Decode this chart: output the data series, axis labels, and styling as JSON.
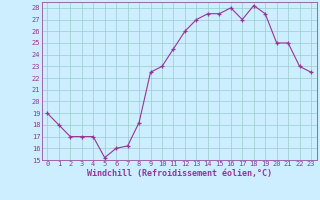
{
  "x": [
    0,
    1,
    2,
    3,
    4,
    5,
    6,
    7,
    8,
    9,
    10,
    11,
    12,
    13,
    14,
    15,
    16,
    17,
    18,
    19,
    20,
    21,
    22,
    23
  ],
  "y": [
    19,
    18,
    17,
    17,
    17,
    15.2,
    16,
    16.2,
    18.2,
    22.5,
    23,
    24.5,
    26,
    27,
    27.5,
    27.5,
    28,
    27,
    28.2,
    27.5,
    25,
    25,
    23,
    22.5
  ],
  "line_color": "#993399",
  "marker": "+",
  "bg_color": "#cceeff",
  "grid_color": "#99cccc",
  "xlabel": "Windchill (Refroidissement éolien,°C)",
  "ylim": [
    15,
    28.5
  ],
  "xlim": [
    -0.5,
    23.5
  ],
  "yticks": [
    15,
    16,
    17,
    18,
    19,
    20,
    21,
    22,
    23,
    24,
    25,
    26,
    27,
    28
  ],
  "xticks": [
    0,
    1,
    2,
    3,
    4,
    5,
    6,
    7,
    8,
    9,
    10,
    11,
    12,
    13,
    14,
    15,
    16,
    17,
    18,
    19,
    20,
    21,
    22,
    23
  ],
  "tick_fontsize": 5.0,
  "xlabel_fontsize": 6.0,
  "spine_color": "#9966aa",
  "linewidth": 0.8,
  "markersize": 3.5
}
